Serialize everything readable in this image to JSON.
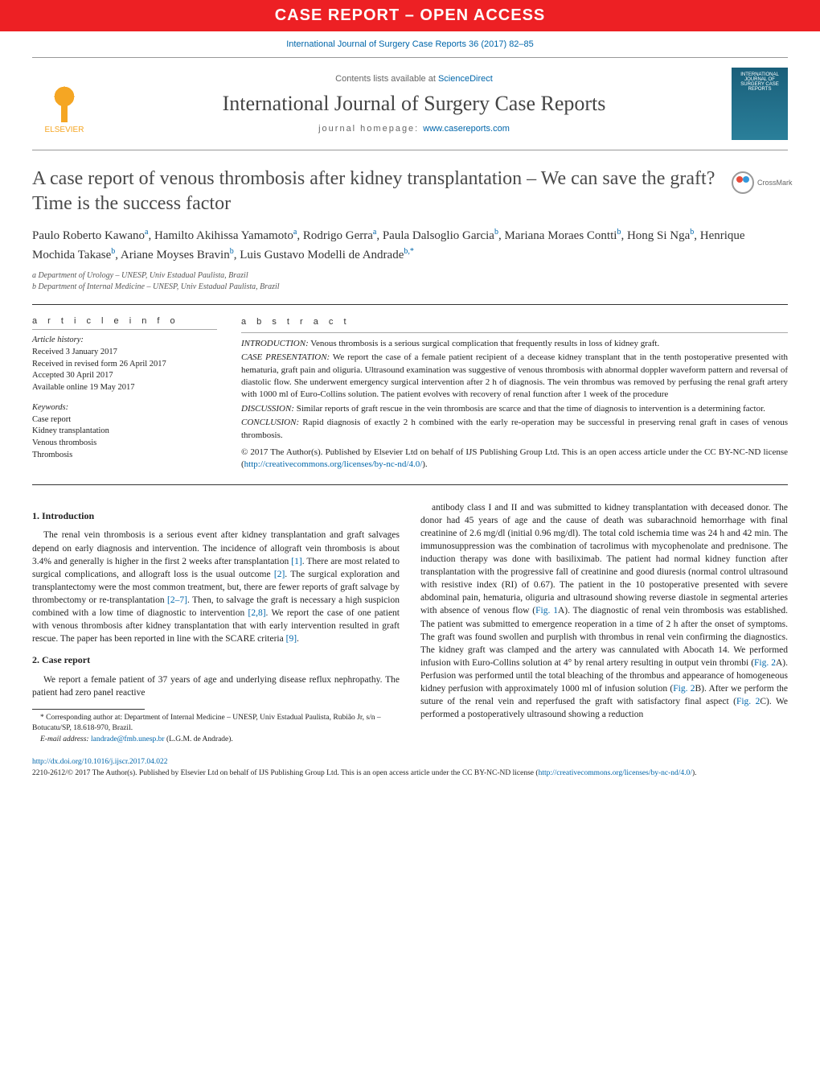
{
  "banner": "CASE REPORT – OPEN ACCESS",
  "citation": "International Journal of Surgery Case Reports 36 (2017) 82–85",
  "header": {
    "contents_prefix": "Contents lists available at ",
    "contents_link": "ScienceDirect",
    "journal": "International Journal of Surgery Case Reports",
    "homepage_prefix": "journal homepage: ",
    "homepage_link": "www.casereports.com",
    "elsevier": "ELSEVIER",
    "cover_text": "INTERNATIONAL JOURNAL OF SURGERY CASE REPORTS"
  },
  "article": {
    "title": "A case report of venous thrombosis after kidney transplantation – We can save the graft? Time is the success factor",
    "crossmark": "CrossMark"
  },
  "authors_html": "Paulo Roberto Kawano<sup>a</sup>, Hamilto Akihissa Yamamoto<sup>a</sup>, Rodrigo Gerra<sup>a</sup>, Paula Dalsoglio Garcia<sup>b</sup>, Mariana Moraes Contti<sup>b</sup>, Hong Si Nga<sup>b</sup>, Henrique Mochida Takase<sup>b</sup>, Ariane Moyses Bravin<sup>b</sup>, Luis Gustavo Modelli de Andrade<sup>b,*</sup>",
  "affiliations": [
    "a Department of Urology – UNESP, Univ Estadual Paulista, Brazil",
    "b Department of Internal Medicine – UNESP, Univ Estadual Paulista, Brazil"
  ],
  "info": {
    "head": "a r t i c l e   i n f o",
    "history_label": "Article history:",
    "history": [
      "Received 3 January 2017",
      "Received in revised form 26 April 2017",
      "Accepted 30 April 2017",
      "Available online 19 May 2017"
    ],
    "keywords_label": "Keywords:",
    "keywords": [
      "Case report",
      "Kidney transplantation",
      "Venous thrombosis",
      "Thrombosis"
    ]
  },
  "abstract": {
    "head": "a b s t r a c t",
    "intro_label": "INTRODUCTION:",
    "intro": " Venous thrombosis is a serious surgical complication that frequently results in loss of kidney graft.",
    "case_label": "CASE PRESENTATION:",
    "case": " We report the case of a female patient recipient of a decease kidney transplant that in the tenth postoperative presented with hematuria, graft pain and oliguria. Ultrasound examination was suggestive of venous thrombosis with abnormal doppler waveform pattern and reversal of diastolic flow. She underwent emergency surgical intervention after 2 h of diagnosis. The vein thrombus was removed by perfusing the renal graft artery with 1000 ml of Euro-Collins solution. The patient evolves with recovery of renal function after 1 week of the procedure",
    "disc_label": "DISCUSSION:",
    "disc": " Similar reports of graft rescue in the vein thrombosis are scarce and that the time of diagnosis to intervention is a determining factor.",
    "conc_label": "CONCLUSION:",
    "conc": " Rapid diagnosis of exactly 2 h combined with the early re-operation may be successful in preserving renal graft in cases of venous thrombosis.",
    "copyright": "© 2017 The Author(s). Published by Elsevier Ltd on behalf of IJS Publishing Group Ltd. This is an open access article under the CC BY-NC-ND license (",
    "copyright_link": "http://creativecommons.org/licenses/by-nc-nd/4.0/",
    "copyright_close": ")."
  },
  "sections": {
    "s1_title": "1. Introduction",
    "s1_p1a": "The renal vein thrombosis is a serious event after kidney transplantation and graft salvages depend on early diagnosis and intervention. The incidence of allograft vein thrombosis is about 3.4% and generally is higher in the first 2 weeks after transplantation ",
    "s1_ref1": "[1]",
    "s1_p1b": ". There are most related to surgical complications, and allograft loss is the usual outcome ",
    "s1_ref2": "[2]",
    "s1_p1c": ". The surgical exploration and transplantectomy were the most common treatment, but, there are fewer reports of graft salvage by thrombectomy or re-transplantation ",
    "s1_ref3": "[2–7]",
    "s1_p1d": ". Then, to salvage the graft is necessary a high suspicion combined with a low time of diagnostic to intervention ",
    "s1_ref4": "[2,8]",
    "s1_p1e": ". We report the case of one patient with venous thrombosis after kidney transplantation that with early intervention resulted in graft rescue. The paper has been reported in line with the SCARE criteria ",
    "s1_ref5": "[9]",
    "s1_p1f": ".",
    "s2_title": "2. Case report",
    "s2_p1": "We report a female patient of 37 years of age and underlying disease reflux nephropathy. The patient had zero panel reactive",
    "s2_p2a": "antibody class I and II and was submitted to kidney transplantation with deceased donor. The donor had 45 years of age and the cause of death was subarachnoid hemorrhage with final creatinine of 2.6 mg/dl (initial 0.96 mg/dl). The total cold ischemia time was 24 h and 42 min. The immunosuppression was the combination of tacrolimus with mycophenolate and prednisone. The induction therapy was done with basiliximab. The patient had normal kidney function after transplantation with the progressive fall of creatinine and good diuresis (normal control ultrasound with resistive index (RI) of 0.67). The patient in the 10 postoperative presented with severe abdominal pain, hematuria, oliguria and ultrasound showing reverse diastole in segmental arteries with absence of venous flow (",
    "s2_fig1": "Fig. 1",
    "s2_p2b": "A). The diagnostic of renal vein thrombosis was established. The patient was submitted to emergence reoperation in a time of 2 h after the onset of symptoms. The graft was found swollen and purplish with thrombus in renal vein confirming the diagnostics. The kidney graft was clamped and the artery was cannulated with Abocath 14. We performed infusion with Euro-Collins solution at 4° by renal artery resulting in output vein thrombi (",
    "s2_fig2a": "Fig. 2",
    "s2_p2c": "A). Perfusion was performed until the total bleaching of the thrombus and appearance of homogeneous kidney perfusion with approximately 1000 ml of infusion solution (",
    "s2_fig2b": "Fig. 2",
    "s2_p2d": "B). After we perform the suture of the renal vein and reperfused the graft with satisfactory final aspect (",
    "s2_fig2c": "Fig. 2",
    "s2_p2e": "C). We performed a postoperatively ultrasound showing a reduction"
  },
  "footnotes": {
    "corr": "* Corresponding author at: Department of Internal Medicine – UNESP, Univ Estadual Paulista, Rubião Jr, s/n – Botucatu/SP, 18.618-970, Brazil.",
    "email_label": "E-mail address: ",
    "email": "landrade@fmb.unesp.br",
    "email_suffix": " (L.G.M. de Andrade)."
  },
  "footer": {
    "doi": "http://dx.doi.org/10.1016/j.ijscr.2017.04.022",
    "issn_line_a": "2210-2612/© 2017 The Author(s). Published by Elsevier Ltd on behalf of IJS Publishing Group Ltd. This is an open access article under the CC BY-NC-ND license (",
    "issn_link": "http://creativecommons.org/licenses/by-nc-nd/4.0/",
    "issn_line_b": ")."
  },
  "colors": {
    "banner_bg": "#ed2024",
    "link": "#0066aa",
    "text": "#222222",
    "muted": "#666666"
  }
}
